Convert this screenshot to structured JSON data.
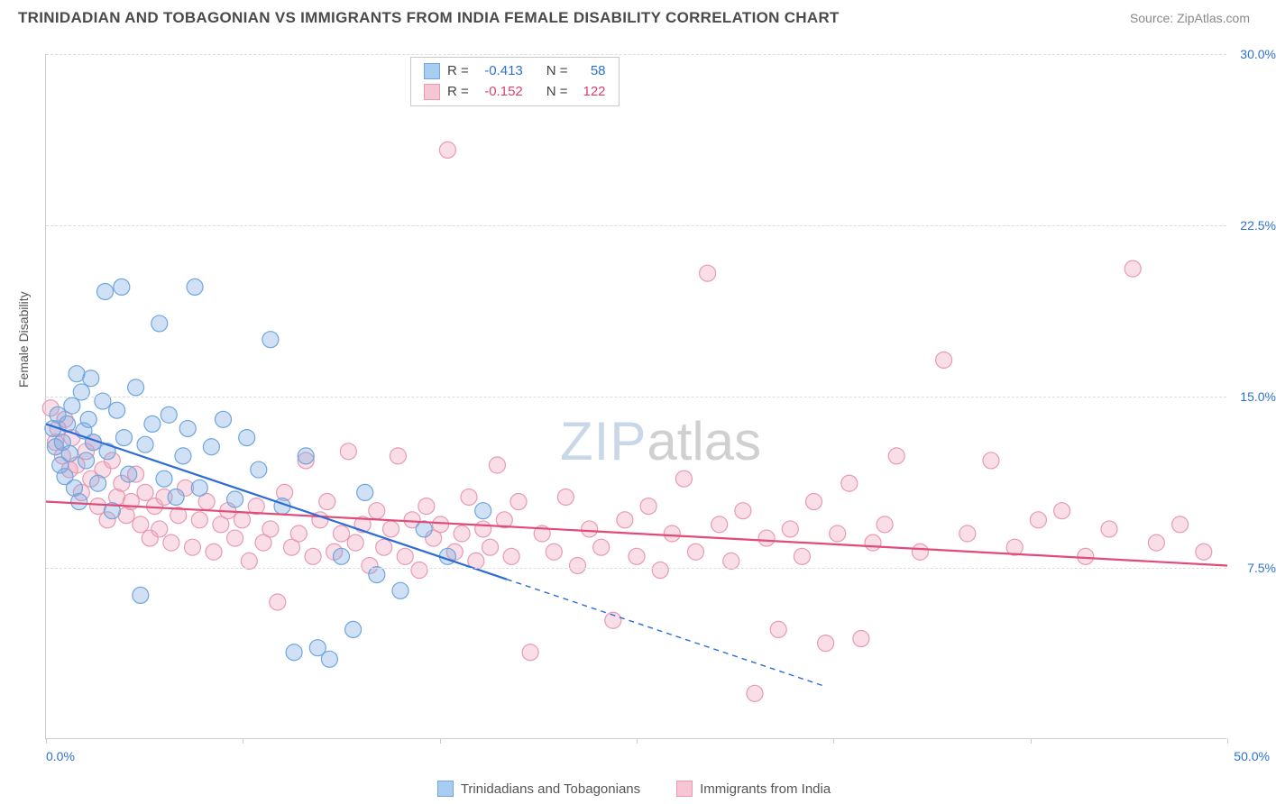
{
  "title": "TRINIDADIAN AND TOBAGONIAN VS IMMIGRANTS FROM INDIA FEMALE DISABILITY CORRELATION CHART",
  "source_label": "Source: ",
  "source_name": "ZipAtlas.com",
  "y_axis_title": "Female Disability",
  "watermark_zip": "ZIP",
  "watermark_atlas": "atlas",
  "chart": {
    "type": "scatter",
    "xlim": [
      0,
      50
    ],
    "ylim": [
      0,
      30
    ],
    "y_ticks": [
      7.5,
      15.0,
      22.5,
      30.0
    ],
    "y_tick_labels": [
      "7.5%",
      "15.0%",
      "22.5%",
      "30.0%"
    ],
    "x_ticks": [
      0,
      8.33,
      16.67,
      25,
      33.33,
      41.67,
      50
    ],
    "x_min_label": "0.0%",
    "x_max_label": "50.0%",
    "background_color": "#ffffff",
    "grid_color": "#dddddd",
    "marker_radius": 9,
    "marker_stroke_width": 1.2,
    "series": [
      {
        "name": "Trinidadians and Tobagonians",
        "fill": "rgba(120,170,225,0.35)",
        "stroke": "#6fa6dd",
        "swatch_fill": "#a9cdf0",
        "swatch_border": "#6fa6dd",
        "R": "-0.413",
        "N": "58",
        "stat_color": "#2d72d2",
        "trend": {
          "x1": 0,
          "y1": 13.8,
          "x2": 19.5,
          "y2": 7.0,
          "x2_ext": 33,
          "y2_ext": 2.3,
          "color": "#2d6cd4",
          "width": 2.2
        },
        "points": [
          [
            0.3,
            13.6
          ],
          [
            0.4,
            12.8
          ],
          [
            0.5,
            14.2
          ],
          [
            0.6,
            12.0
          ],
          [
            0.7,
            13.0
          ],
          [
            0.8,
            11.5
          ],
          [
            0.9,
            13.8
          ],
          [
            1.0,
            12.5
          ],
          [
            1.1,
            14.6
          ],
          [
            1.2,
            11.0
          ],
          [
            1.3,
            16.0
          ],
          [
            1.4,
            10.4
          ],
          [
            1.5,
            15.2
          ],
          [
            1.6,
            13.5
          ],
          [
            1.7,
            12.2
          ],
          [
            1.8,
            14.0
          ],
          [
            1.9,
            15.8
          ],
          [
            2.0,
            13.0
          ],
          [
            2.2,
            11.2
          ],
          [
            2.4,
            14.8
          ],
          [
            2.5,
            19.6
          ],
          [
            2.6,
            12.6
          ],
          [
            2.8,
            10.0
          ],
          [
            3.0,
            14.4
          ],
          [
            3.2,
            19.8
          ],
          [
            3.3,
            13.2
          ],
          [
            3.5,
            11.6
          ],
          [
            3.8,
            15.4
          ],
          [
            4.0,
            6.3
          ],
          [
            4.2,
            12.9
          ],
          [
            4.5,
            13.8
          ],
          [
            4.8,
            18.2
          ],
          [
            5.0,
            11.4
          ],
          [
            5.2,
            14.2
          ],
          [
            5.5,
            10.6
          ],
          [
            5.8,
            12.4
          ],
          [
            6.0,
            13.6
          ],
          [
            6.3,
            19.8
          ],
          [
            6.5,
            11.0
          ],
          [
            7.0,
            12.8
          ],
          [
            7.5,
            14.0
          ],
          [
            8.0,
            10.5
          ],
          [
            8.5,
            13.2
          ],
          [
            9.0,
            11.8
          ],
          [
            9.5,
            17.5
          ],
          [
            10.0,
            10.2
          ],
          [
            10.5,
            3.8
          ],
          [
            11.0,
            12.4
          ],
          [
            11.5,
            4.0
          ],
          [
            12.0,
            3.5
          ],
          [
            12.5,
            8.0
          ],
          [
            13.0,
            4.8
          ],
          [
            13.5,
            10.8
          ],
          [
            14.0,
            7.2
          ],
          [
            15.0,
            6.5
          ],
          [
            16.0,
            9.2
          ],
          [
            17.0,
            8.0
          ],
          [
            18.5,
            10.0
          ]
        ]
      },
      {
        "name": "Immigrants from India",
        "fill": "rgba(240,160,185,0.35)",
        "stroke": "#e89ab2",
        "swatch_fill": "#f7c6d4",
        "swatch_border": "#e89ab2",
        "R": "-0.152",
        "N": "122",
        "stat_color": "#d6436e",
        "trend": {
          "x1": 0,
          "y1": 10.4,
          "x2": 50,
          "y2": 7.6,
          "color": "#e24a77",
          "width": 2.2
        },
        "points": [
          [
            0.2,
            14.5
          ],
          [
            0.4,
            13.0
          ],
          [
            0.5,
            13.6
          ],
          [
            0.7,
            12.4
          ],
          [
            0.8,
            14.0
          ],
          [
            1.0,
            11.8
          ],
          [
            1.1,
            13.2
          ],
          [
            1.3,
            12.0
          ],
          [
            1.5,
            10.8
          ],
          [
            1.7,
            12.6
          ],
          [
            1.9,
            11.4
          ],
          [
            2.0,
            13.0
          ],
          [
            2.2,
            10.2
          ],
          [
            2.4,
            11.8
          ],
          [
            2.6,
            9.6
          ],
          [
            2.8,
            12.2
          ],
          [
            3.0,
            10.6
          ],
          [
            3.2,
            11.2
          ],
          [
            3.4,
            9.8
          ],
          [
            3.6,
            10.4
          ],
          [
            3.8,
            11.6
          ],
          [
            4.0,
            9.4
          ],
          [
            4.2,
            10.8
          ],
          [
            4.4,
            8.8
          ],
          [
            4.6,
            10.2
          ],
          [
            4.8,
            9.2
          ],
          [
            5.0,
            10.6
          ],
          [
            5.3,
            8.6
          ],
          [
            5.6,
            9.8
          ],
          [
            5.9,
            11.0
          ],
          [
            6.2,
            8.4
          ],
          [
            6.5,
            9.6
          ],
          [
            6.8,
            10.4
          ],
          [
            7.1,
            8.2
          ],
          [
            7.4,
            9.4
          ],
          [
            7.7,
            10.0
          ],
          [
            8.0,
            8.8
          ],
          [
            8.3,
            9.6
          ],
          [
            8.6,
            7.8
          ],
          [
            8.9,
            10.2
          ],
          [
            9.2,
            8.6
          ],
          [
            9.5,
            9.2
          ],
          [
            9.8,
            6.0
          ],
          [
            10.1,
            10.8
          ],
          [
            10.4,
            8.4
          ],
          [
            10.7,
            9.0
          ],
          [
            11.0,
            12.2
          ],
          [
            11.3,
            8.0
          ],
          [
            11.6,
            9.6
          ],
          [
            11.9,
            10.4
          ],
          [
            12.2,
            8.2
          ],
          [
            12.5,
            9.0
          ],
          [
            12.8,
            12.6
          ],
          [
            13.1,
            8.6
          ],
          [
            13.4,
            9.4
          ],
          [
            13.7,
            7.6
          ],
          [
            14.0,
            10.0
          ],
          [
            14.3,
            8.4
          ],
          [
            14.6,
            9.2
          ],
          [
            14.9,
            12.4
          ],
          [
            15.2,
            8.0
          ],
          [
            15.5,
            9.6
          ],
          [
            15.8,
            7.4
          ],
          [
            16.1,
            10.2
          ],
          [
            16.4,
            8.8
          ],
          [
            16.7,
            9.4
          ],
          [
            17.0,
            25.8
          ],
          [
            17.3,
            8.2
          ],
          [
            17.6,
            9.0
          ],
          [
            17.9,
            10.6
          ],
          [
            18.2,
            7.8
          ],
          [
            18.5,
            9.2
          ],
          [
            18.8,
            8.4
          ],
          [
            19.1,
            12.0
          ],
          [
            19.4,
            9.6
          ],
          [
            19.7,
            8.0
          ],
          [
            20.0,
            10.4
          ],
          [
            20.5,
            3.8
          ],
          [
            21.0,
            9.0
          ],
          [
            21.5,
            8.2
          ],
          [
            22.0,
            10.6
          ],
          [
            22.5,
            7.6
          ],
          [
            23.0,
            9.2
          ],
          [
            23.5,
            8.4
          ],
          [
            24.0,
            5.2
          ],
          [
            24.5,
            9.6
          ],
          [
            25.0,
            8.0
          ],
          [
            25.5,
            10.2
          ],
          [
            26.0,
            7.4
          ],
          [
            26.5,
            9.0
          ],
          [
            27.0,
            11.4
          ],
          [
            27.5,
            8.2
          ],
          [
            28.0,
            20.4
          ],
          [
            28.5,
            9.4
          ],
          [
            29.0,
            7.8
          ],
          [
            29.5,
            10.0
          ],
          [
            30.0,
            2.0
          ],
          [
            30.5,
            8.8
          ],
          [
            31.0,
            4.8
          ],
          [
            31.5,
            9.2
          ],
          [
            32.0,
            8.0
          ],
          [
            32.5,
            10.4
          ],
          [
            33.0,
            4.2
          ],
          [
            33.5,
            9.0
          ],
          [
            34.0,
            11.2
          ],
          [
            34.5,
            4.4
          ],
          [
            35.0,
            8.6
          ],
          [
            35.5,
            9.4
          ],
          [
            36.0,
            12.4
          ],
          [
            37.0,
            8.2
          ],
          [
            38.0,
            16.6
          ],
          [
            39.0,
            9.0
          ],
          [
            40.0,
            12.2
          ],
          [
            41.0,
            8.4
          ],
          [
            42.0,
            9.6
          ],
          [
            43.0,
            10.0
          ],
          [
            44.0,
            8.0
          ],
          [
            45.0,
            9.2
          ],
          [
            46.0,
            20.6
          ],
          [
            47.0,
            8.6
          ],
          [
            48.0,
            9.4
          ],
          [
            49.0,
            8.2
          ]
        ]
      }
    ]
  },
  "legend": {
    "series1_label": "Trinidadians and Tobagonians",
    "series2_label": "Immigrants from India"
  },
  "stats_labels": {
    "R": "R =",
    "N": "N ="
  }
}
